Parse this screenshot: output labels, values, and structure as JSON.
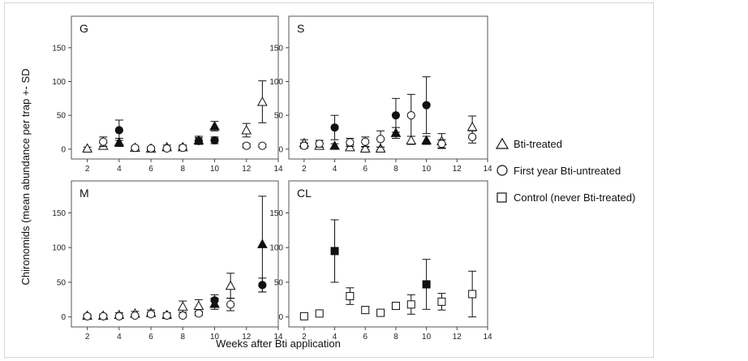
{
  "chart_data": {
    "type": "scatter",
    "xlabel": "Weeks after Bti application",
    "ylabel": "Chironomids (mean abundance per trap +- SD",
    "xlim": [
      1,
      14
    ],
    "ylim": [
      -5,
      175
    ],
    "xticks": [
      2,
      4,
      6,
      8,
      10,
      12,
      14
    ],
    "yticks": [
      0,
      50,
      100,
      150
    ],
    "legend": {
      "placement": "right",
      "entries": [
        {
          "marker": "triangle",
          "label": "Bti-treated"
        },
        {
          "marker": "circle",
          "label": "First year Bti-untreated"
        },
        {
          "marker": "square",
          "label": "Control (never Bti-treated)"
        }
      ]
    },
    "panels": [
      {
        "label": "G",
        "series": [
          {
            "marker": "triangle",
            "points": [
              {
                "x": 2,
                "y": 1,
                "sd": 2,
                "filled": false
              },
              {
                "x": 3,
                "y": 5,
                "sd": 4,
                "filled": false
              },
              {
                "x": 4,
                "y": 10,
                "sd": 6,
                "filled": true
              },
              {
                "x": 5,
                "y": 2,
                "sd": 2,
                "filled": false
              },
              {
                "x": 6,
                "y": 1,
                "sd": 2,
                "filled": false
              },
              {
                "x": 7,
                "y": 3,
                "sd": 3,
                "filled": false
              },
              {
                "x": 8,
                "y": 3,
                "sd": 3,
                "filled": false
              },
              {
                "x": 9,
                "y": 13,
                "sd": 6,
                "filled": true
              },
              {
                "x": 10,
                "y": 34,
                "sd": 7,
                "filled": true
              },
              {
                "x": 12,
                "y": 28,
                "sd": 10,
                "filled": false
              },
              {
                "x": 13,
                "y": 70,
                "sd": 31,
                "filled": false
              }
            ]
          },
          {
            "marker": "circle",
            "points": [
              {
                "x": 3,
                "y": 11,
                "sd": 7,
                "filled": false
              },
              {
                "x": 4,
                "y": 28,
                "sd": 15,
                "filled": true
              },
              {
                "x": 5,
                "y": 2,
                "sd": 2,
                "filled": false
              },
              {
                "x": 6,
                "y": 1,
                "sd": 2,
                "filled": false
              },
              {
                "x": 7,
                "y": 1,
                "sd": 1,
                "filled": false
              },
              {
                "x": 8,
                "y": 2,
                "sd": 2,
                "filled": false
              },
              {
                "x": 9,
                "y": 12,
                "sd": 5,
                "filled": true
              },
              {
                "x": 10,
                "y": 13,
                "sd": 5,
                "filled": true
              },
              {
                "x": 12,
                "y": 5,
                "sd": 3,
                "filled": false
              },
              {
                "x": 13,
                "y": 5,
                "sd": 2,
                "filled": false
              }
            ]
          }
        ]
      },
      {
        "label": "S",
        "series": [
          {
            "marker": "triangle",
            "points": [
              {
                "x": 2,
                "y": 9,
                "sd": 5,
                "filled": false
              },
              {
                "x": 3,
                "y": 5,
                "sd": 4,
                "filled": false
              },
              {
                "x": 4,
                "y": 5,
                "sd": 3,
                "filled": true
              },
              {
                "x": 5,
                "y": 3,
                "sd": 3,
                "filled": false
              },
              {
                "x": 6,
                "y": 1,
                "sd": 2,
                "filled": false
              },
              {
                "x": 7,
                "y": 1,
                "sd": 2,
                "filled": false
              },
              {
                "x": 8,
                "y": 24,
                "sd": 8,
                "filled": true
              },
              {
                "x": 9,
                "y": 13,
                "sd": 6,
                "filled": false
              },
              {
                "x": 10,
                "y": 13,
                "sd": 6,
                "filled": true
              },
              {
                "x": 11,
                "y": 12,
                "sd": 11,
                "filled": false
              },
              {
                "x": 13,
                "y": 33,
                "sd": 16,
                "filled": false
              }
            ]
          },
          {
            "marker": "circle",
            "points": [
              {
                "x": 2,
                "y": 5,
                "sd": 4,
                "filled": false
              },
              {
                "x": 3,
                "y": 8,
                "sd": 5,
                "filled": false
              },
              {
                "x": 4,
                "y": 32,
                "sd": 18,
                "filled": true
              },
              {
                "x": 5,
                "y": 10,
                "sd": 6,
                "filled": false
              },
              {
                "x": 6,
                "y": 11,
                "sd": 7,
                "filled": false
              },
              {
                "x": 7,
                "y": 15,
                "sd": 12,
                "filled": false
              },
              {
                "x": 8,
                "y": 50,
                "sd": 25,
                "filled": true
              },
              {
                "x": 9,
                "y": 50,
                "sd": 31,
                "filled": false
              },
              {
                "x": 10,
                "y": 65,
                "sd": 42,
                "filled": true
              },
              {
                "x": 11,
                "y": 8,
                "sd": 6,
                "filled": false
              },
              {
                "x": 13,
                "y": 18,
                "sd": 9,
                "filled": false
              }
            ]
          }
        ]
      },
      {
        "label": "M",
        "series": [
          {
            "marker": "triangle",
            "points": [
              {
                "x": 2,
                "y": 2,
                "sd": 2,
                "filled": false
              },
              {
                "x": 3,
                "y": 2,
                "sd": 2,
                "filled": false
              },
              {
                "x": 4,
                "y": 3,
                "sd": 3,
                "filled": false
              },
              {
                "x": 5,
                "y": 5,
                "sd": 3,
                "filled": false
              },
              {
                "x": 6,
                "y": 6,
                "sd": 4,
                "filled": false
              },
              {
                "x": 7,
                "y": 3,
                "sd": 3,
                "filled": false
              },
              {
                "x": 8,
                "y": 15,
                "sd": 8,
                "filled": false
              },
              {
                "x": 9,
                "y": 16,
                "sd": 9,
                "filled": false
              },
              {
                "x": 10,
                "y": 19,
                "sd": 8,
                "filled": true
              },
              {
                "x": 11,
                "y": 45,
                "sd": 18,
                "filled": false
              },
              {
                "x": 13,
                "y": 105,
                "sd": 69,
                "filled": true
              }
            ]
          },
          {
            "marker": "circle",
            "points": [
              {
                "x": 2,
                "y": 1,
                "sd": 1,
                "filled": false
              },
              {
                "x": 3,
                "y": 1,
                "sd": 1,
                "filled": false
              },
              {
                "x": 4,
                "y": 1,
                "sd": 1,
                "filled": false
              },
              {
                "x": 5,
                "y": 2,
                "sd": 2,
                "filled": false
              },
              {
                "x": 6,
                "y": 4,
                "sd": 3,
                "filled": false
              },
              {
                "x": 7,
                "y": 2,
                "sd": 2,
                "filled": false
              },
              {
                "x": 8,
                "y": 2,
                "sd": 2,
                "filled": false
              },
              {
                "x": 9,
                "y": 5,
                "sd": 3,
                "filled": false
              },
              {
                "x": 10,
                "y": 24,
                "sd": 8,
                "filled": true
              },
              {
                "x": 11,
                "y": 18,
                "sd": 9,
                "filled": false
              },
              {
                "x": 13,
                "y": 46,
                "sd": 10,
                "filled": true
              }
            ]
          }
        ]
      },
      {
        "label": "CL",
        "series": [
          {
            "marker": "square",
            "points": [
              {
                "x": 2,
                "y": 1,
                "sd": 2,
                "filled": false
              },
              {
                "x": 3,
                "y": 5,
                "sd": 3,
                "filled": false
              },
              {
                "x": 4,
                "y": 95,
                "sd": 45,
                "filled": true
              },
              {
                "x": 5,
                "y": 30,
                "sd": 12,
                "filled": false
              },
              {
                "x": 6,
                "y": 10,
                "sd": 5,
                "filled": false
              },
              {
                "x": 7,
                "y": 6,
                "sd": 3,
                "filled": false
              },
              {
                "x": 8,
                "y": 16,
                "sd": 4,
                "filled": false
              },
              {
                "x": 9,
                "y": 18,
                "sd": 14,
                "filled": false
              },
              {
                "x": 10,
                "y": 47,
                "sd": 36,
                "filled": true
              },
              {
                "x": 11,
                "y": 22,
                "sd": 12,
                "filled": false
              },
              {
                "x": 13,
                "y": 33,
                "sd": 33,
                "filled": false
              }
            ]
          }
        ]
      }
    ]
  }
}
